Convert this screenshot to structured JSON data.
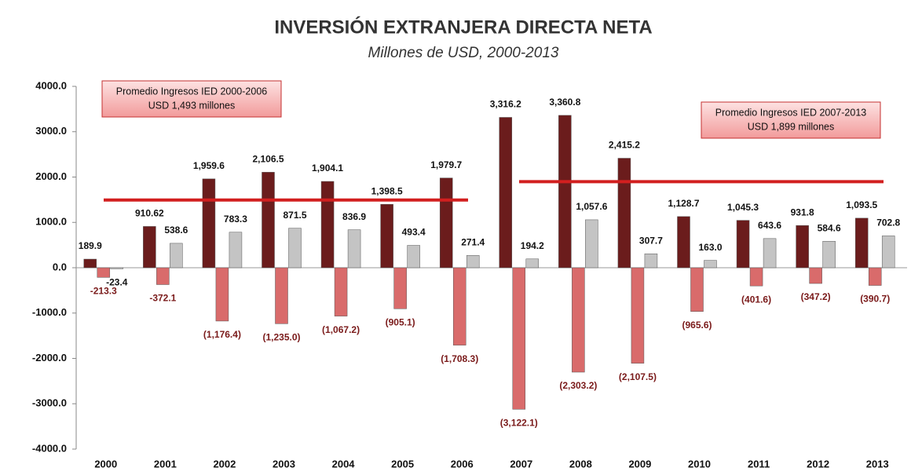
{
  "chart_data": {
    "type": "bar",
    "title": "INVERSIÓN EXTRANJERA DIRECTA NETA",
    "subtitle": "Millones de  USD, 2000-2013",
    "categories": [
      "2000",
      "2001",
      "2002",
      "2003",
      "2004",
      "2005",
      "2006",
      "2007",
      "2008",
      "2009",
      "2010",
      "2011",
      "2012",
      "2013"
    ],
    "series": [
      {
        "color": "#6b1c1c",
        "values": [
          189.9,
          910.62,
          1959.6,
          2106.5,
          1904.1,
          1398.5,
          1979.7,
          3316.2,
          3360.8,
          2415.2,
          1128.7,
          1045.3,
          931.8,
          1093.5
        ],
        "value_labels": [
          "189.9",
          "910.62",
          "1,959.6",
          "2,106.5",
          "1,904.1",
          "1,398.5",
          "1,979.7",
          "3,316.2",
          "3,360.8",
          "2,415.2",
          "1,128.7",
          "1,045.3",
          "931.8",
          "1,093.5"
        ]
      },
      {
        "color": "#d96b6b",
        "values": [
          -213.3,
          -372.1,
          -1176.4,
          -1235.0,
          -1067.2,
          -905.1,
          -1708.3,
          -3122.1,
          -2303.2,
          -2107.5,
          -965.6,
          -401.6,
          -347.2,
          -390.7
        ],
        "value_labels": [
          "-213.3",
          "-372.1",
          "(1,176.4)",
          "(1,235.0)",
          "(1,067.2)",
          "(905.1)",
          "(1,708.3)",
          "(3,122.1)",
          "(2,303.2)",
          "(2,107.5)",
          "(965.6)",
          "(401.6)",
          "(347.2)",
          "(390.7)"
        ]
      },
      {
        "color": "#c4c4c4",
        "values": [
          -23.4,
          538.6,
          783.3,
          871.5,
          836.9,
          493.4,
          271.4,
          194.2,
          1057.6,
          307.7,
          163.0,
          643.6,
          584.6,
          702.8
        ],
        "value_labels": [
          "-23.4",
          "538.6",
          "783.3",
          "871.5",
          "836.9",
          "493.4",
          "271.4",
          "194.2",
          "1,057.6",
          "307.7",
          "163.0",
          "643.6",
          "584.6",
          "702.8"
        ]
      }
    ],
    "ylim": [
      -4000,
      4000
    ],
    "yticks": [
      {
        "value": 4000,
        "label": "4000.0"
      },
      {
        "value": 3000,
        "label": "3000.0"
      },
      {
        "value": 2000,
        "label": "2000.0"
      },
      {
        "value": 1000,
        "label": "1000.0"
      },
      {
        "value": 0,
        "label": "0.0"
      },
      {
        "value": -1000,
        "label": "-1000.0"
      },
      {
        "value": -2000,
        "label": "-2000.0"
      },
      {
        "value": -3000,
        "label": "-3000.0"
      },
      {
        "value": -4000,
        "label": "-4000.0"
      }
    ],
    "annotations": [
      {
        "lines": [
          "Promedio  Ingresos IED 2000-2006",
          "USD 1,493 millones"
        ],
        "value": 1493,
        "from": "2000",
        "to": "2006",
        "color": "#d21f1f"
      },
      {
        "lines": [
          "Promedio  Ingresos IED 2007-2013",
          "USD 1,899 millones"
        ],
        "value": 1899,
        "from": "2007",
        "to": "2013",
        "color": "#d21f1f"
      }
    ]
  }
}
